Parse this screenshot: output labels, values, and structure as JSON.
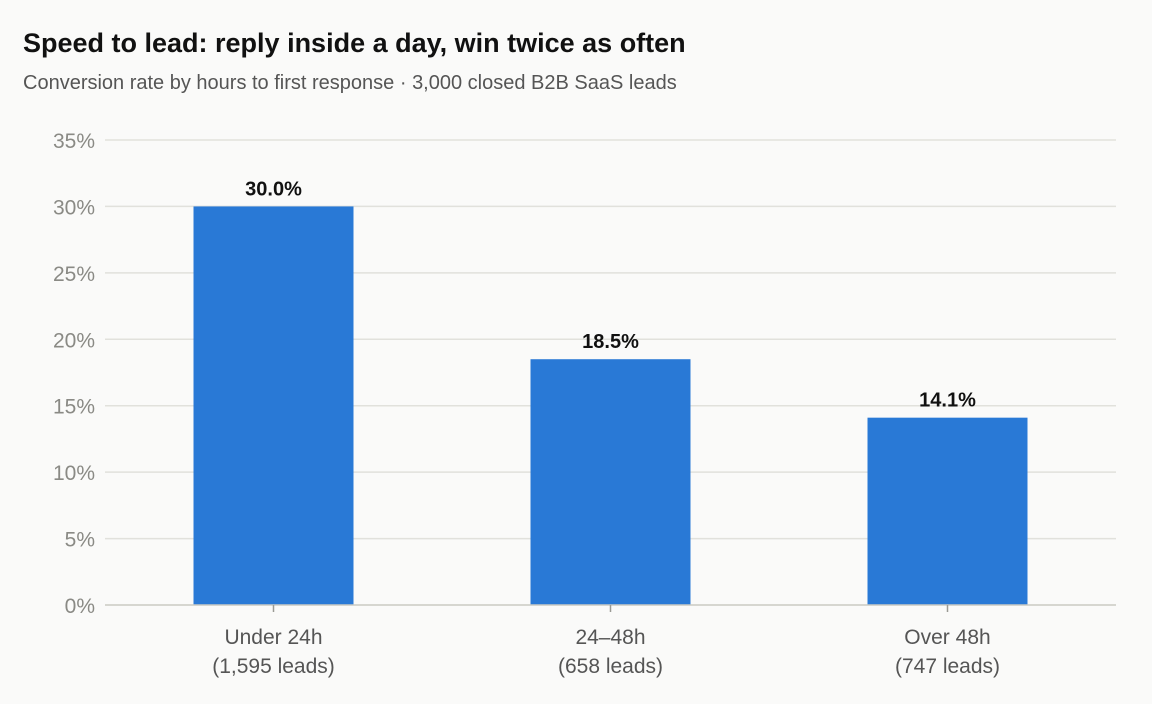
{
  "chart_data": {
    "type": "bar",
    "title": "Speed to lead: reply inside a day, win twice as often",
    "subtitle": "Conversion rate by hours to first response · 3,000 closed B2B SaaS leads",
    "categories": [
      "Under 24h",
      "24–48h",
      "Over 48h"
    ],
    "category_sublabels": [
      "(1,595 leads)",
      "(658 leads)",
      "(747 leads)"
    ],
    "values": [
      30.0,
      18.5,
      14.1
    ],
    "data_labels": [
      "30.0%",
      "18.5%",
      "14.1%"
    ],
    "ylim": [
      0,
      35
    ],
    "y_ticks": [
      0,
      5,
      10,
      15,
      20,
      25,
      30,
      35
    ],
    "y_tick_labels": [
      "0%",
      "5%",
      "10%",
      "15%",
      "20%",
      "25%",
      "30%",
      "35%"
    ],
    "xlabel": "",
    "ylabel": "",
    "grid": true,
    "bar_color": "#2979d6"
  }
}
